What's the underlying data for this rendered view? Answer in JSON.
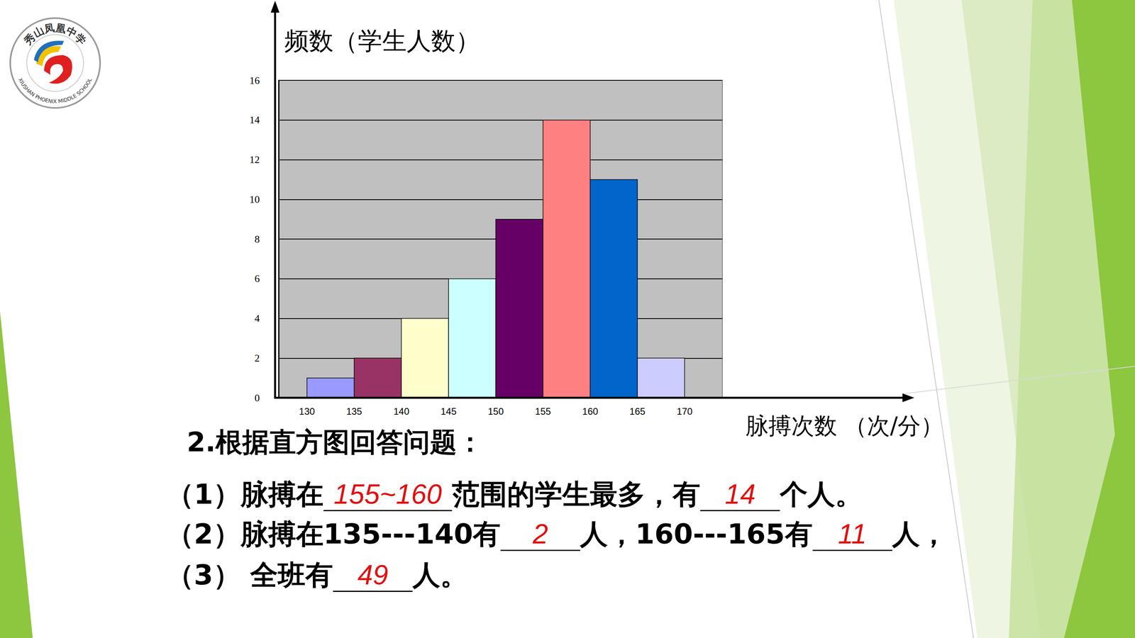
{
  "chart_data": {
    "type": "histogram",
    "bins": [
      130,
      135,
      140,
      145,
      150,
      155,
      160,
      165,
      170
    ],
    "values": [
      1,
      2,
      4,
      6,
      9,
      14,
      11,
      2
    ],
    "colors": [
      "#9999ff",
      "#993366",
      "#ffffcc",
      "#ccffff",
      "#660066",
      "#ff8080",
      "#0066cc",
      "#ccccff"
    ],
    "xlabel": "脉搏次数 （次/分）",
    "ylabel": "频数（学生人数）",
    "xlim": [
      127,
      174
    ],
    "ylim": [
      0,
      16
    ],
    "xticks": [
      130,
      135,
      140,
      145,
      150,
      155,
      160,
      165,
      170
    ],
    "yticks": [
      0,
      2,
      4,
      6,
      8,
      10,
      12,
      14,
      16
    ],
    "grid": true
  },
  "logo": {
    "title": "秀山凤凰中学",
    "subtitle": "XIUSHAN PHOENIX MIDDLE SCHOOL"
  },
  "questions": {
    "heading": "2.根据直方图回答问题：",
    "lines": [
      {
        "parts": [
          "（1）脉搏在",
          "范围的学生最多，有",
          "个人。"
        ],
        "answers": [
          "155~160",
          "14"
        ]
      },
      {
        "parts": [
          "（2）脉搏在135---140有",
          "人，160---165有",
          "人，"
        ],
        "answers": [
          "2",
          "11"
        ]
      },
      {
        "parts": [
          "（3） 全班有",
          "人。"
        ],
        "answers": [
          "49"
        ]
      }
    ]
  }
}
